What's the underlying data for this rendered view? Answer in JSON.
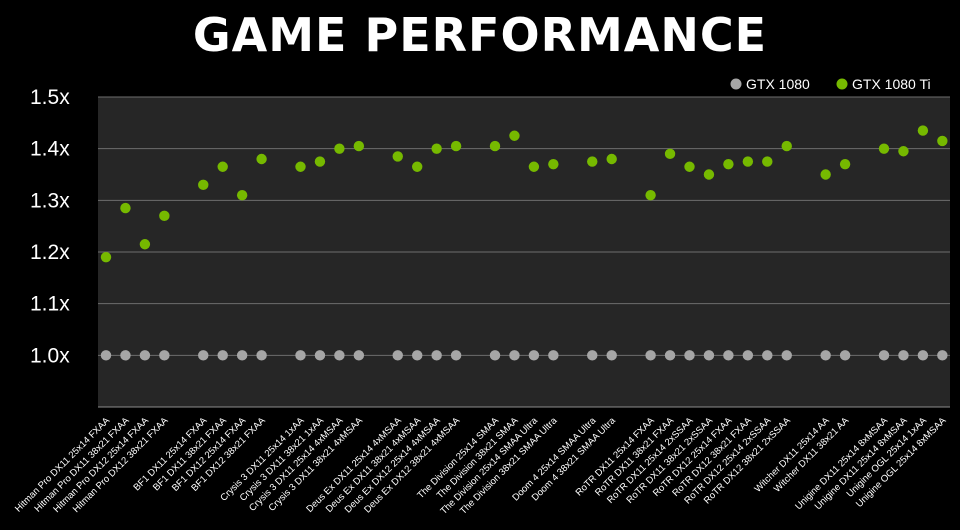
{
  "chart_data": {
    "type": "scatter",
    "title": "GAME PERFORMANCE",
    "xlabel": "",
    "ylabel": "",
    "ylim": [
      0.9,
      1.5
    ],
    "yticks": [
      1.0,
      1.1,
      1.2,
      1.3,
      1.4,
      1.5
    ],
    "ytick_labels": [
      "1.0x",
      "1.1x",
      "1.2x",
      "1.3x",
      "1.4x",
      "1.5x"
    ],
    "grid": true,
    "legend_position": "top-right",
    "categories": [
      "Hitman Pro DX11 25x14 FXAA",
      "Hitman Pro DX11 38x21 FXAA",
      "Hitman Pro DX12 25x14 FXAA",
      "Hitman Pro DX12 38x21 FXAA",
      "BF1 DX11 25x14 FXAA",
      "BF1 DX11 38x21 FXAA",
      "BF1 DX12 25x14 FXAA",
      "BF1 DX12 38x21 FXAA",
      "Crysis 3 DX11 25x14 1xAA",
      "Crysis 3 DX11 38x21 1xAA",
      "Crysis 3 DX11 25x14 4xMSAA",
      "Crysis 3 DX11 38x21 4xMSAA",
      "Deus Ex DX11 25x14 4xMSAA",
      "Deus Ex DX11 38x21 4xMSAA",
      "Deus Ex DX12 25x14 4xMSAA",
      "Deus Ex DX12 38x21 4xMSAA",
      "The Division 25x14 SMAA",
      "The Division 38x21 SMAA",
      "The Division 25x14 SMAA Ultra",
      "The Division 38x21 SMAA Ultra",
      "Doom 4 25x14 SMAA Ultra",
      "Doom 4 38x21 SMAA Ultra",
      "RoTR DX11 25x14 FXAA",
      "RoTR DX11 38x21 FXAA",
      "RoTR DX11 25x14 2xSSAA",
      "RoTR DX11 38x21 2xSSAA",
      "RoTR DX12 25x14 FXAA",
      "RoTR DX12 38x21 FXAA",
      "RoTR DX12 25x14 2xSSAA",
      "RoTR DX12 38x21 2xSSAA",
      "Witcher DX11 25x14 AA",
      "Witcher DX11 38x21 AA",
      "Unigine DX11 25x14 8xMSAA",
      "Unigine DX11 25x14 8xMSAA",
      "Unigine OGL 25x14 1xAA",
      "Unigine OGL 25x14 8xMSAA"
    ],
    "groups": [
      4,
      4,
      4,
      4,
      4,
      2,
      8,
      2,
      4
    ],
    "series": [
      {
        "name": "GTX 1080",
        "color": "#a6a6a6",
        "values": [
          1.0,
          1.0,
          1.0,
          1.0,
          1.0,
          1.0,
          1.0,
          1.0,
          1.0,
          1.0,
          1.0,
          1.0,
          1.0,
          1.0,
          1.0,
          1.0,
          1.0,
          1.0,
          1.0,
          1.0,
          1.0,
          1.0,
          1.0,
          1.0,
          1.0,
          1.0,
          1.0,
          1.0,
          1.0,
          1.0,
          1.0,
          1.0,
          1.0,
          1.0,
          1.0,
          1.0
        ]
      },
      {
        "name": "GTX 1080 Ti",
        "color": "#76b900",
        "values": [
          1.19,
          1.285,
          1.215,
          1.27,
          1.33,
          1.365,
          1.31,
          1.38,
          1.365,
          1.375,
          1.4,
          1.405,
          1.385,
          1.365,
          1.4,
          1.405,
          1.405,
          1.425,
          1.365,
          1.37,
          1.375,
          1.38,
          1.31,
          1.39,
          1.365,
          1.35,
          1.37,
          1.375,
          1.375,
          1.405,
          1.35,
          1.37,
          1.4,
          1.395,
          1.435,
          1.415
        ]
      }
    ]
  }
}
